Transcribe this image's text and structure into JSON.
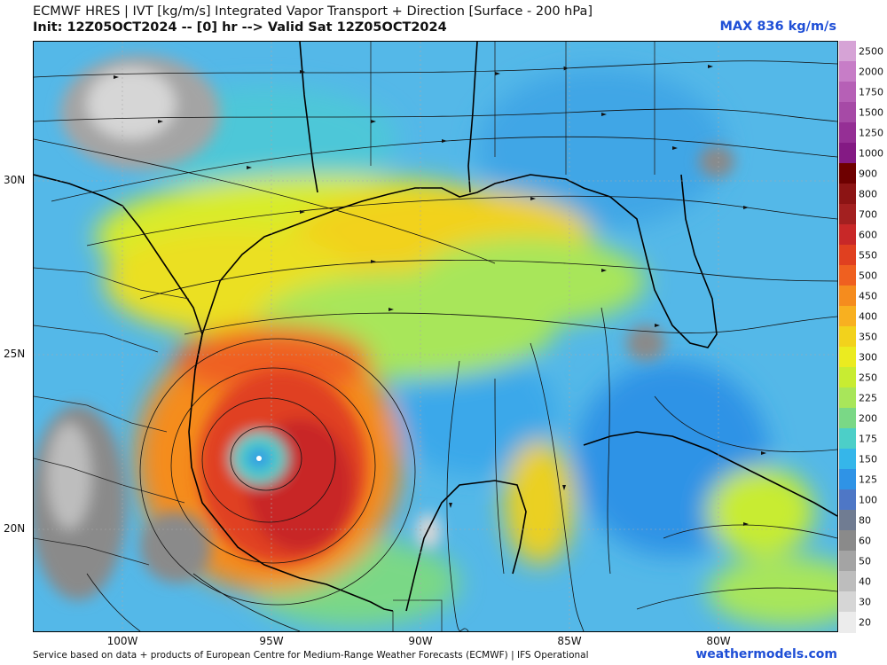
{
  "header": {
    "title_line1": "ECMWF HRES | IVT [kg/m/s] Integrated Vapor Transport + Direction [Surface - 200 hPa]",
    "title_line2": "Init: 12Z05OCT2024 -- [0] hr --> Valid Sat 12Z05OCT2024",
    "max_label": "MAX 836 kg/m/s"
  },
  "map": {
    "lat_labels": [
      "30N",
      "25N",
      "20N"
    ],
    "lon_labels": [
      "100W",
      "95W",
      "90W",
      "85W",
      "80W"
    ]
  },
  "colorbar": {
    "ticks": [
      "2500",
      "2000",
      "1750",
      "1500",
      "1250",
      "1000",
      "900",
      "800",
      "700",
      "600",
      "550",
      "500",
      "450",
      "400",
      "350",
      "300",
      "250",
      "225",
      "200",
      "175",
      "150",
      "125",
      "100",
      "80",
      "60",
      "50",
      "40",
      "30",
      "20"
    ],
    "colors": [
      "#d6a3d6",
      "#c77dc7",
      "#b660b6",
      "#a64aa6",
      "#952f95",
      "#841a84",
      "#6e0000",
      "#8c1414",
      "#a32020",
      "#c82828",
      "#e04020",
      "#ef6020",
      "#f58c1e",
      "#f8b020",
      "#f2d21c",
      "#ebeb20",
      "#c8ec32",
      "#a8e65a",
      "#7ad886",
      "#4ccfc8",
      "#35b6ea",
      "#2f93e6",
      "#4e77c6",
      "#707c92",
      "#8a8a8a",
      "#a4a4a4",
      "#bdbdbd",
      "#d6d6d6",
      "#ececec"
    ]
  },
  "footer": {
    "credit": "Service based on data + products of European Centre for Medium-Range Weather Forecasts (ECMWF) | IFS Operational",
    "brand": "weathermodels.com"
  }
}
